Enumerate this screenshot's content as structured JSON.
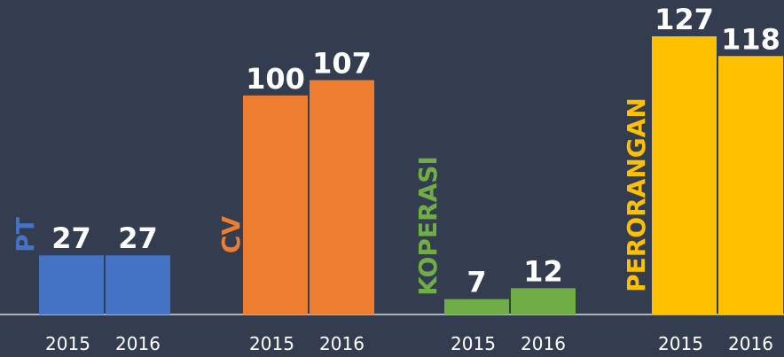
{
  "chart_data": {
    "type": "bar",
    "years": [
      "2015",
      "2016"
    ],
    "groups": [
      {
        "name": "PT",
        "color": "#4472c4",
        "values": [
          27,
          27
        ]
      },
      {
        "name": "CV",
        "color": "#ed7d31",
        "values": [
          100,
          107
        ]
      },
      {
        "name": "KOPERASI",
        "color": "#70ad47",
        "values": [
          7,
          12
        ]
      },
      {
        "name": "PERORANGAN",
        "color": "#ffc000",
        "values": [
          127,
          118
        ]
      }
    ]
  }
}
